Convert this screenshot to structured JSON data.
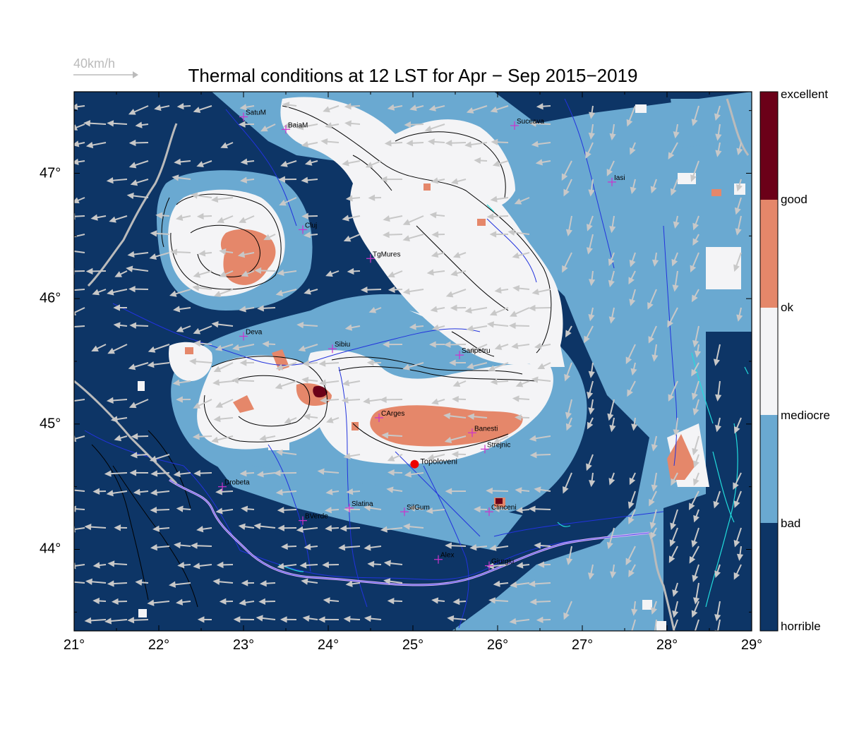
{
  "title": "Thermal conditions at 12 LST for Apr − Sep  2015−2019",
  "wind_scale": {
    "label": "40km/h"
  },
  "colors": {
    "horrible": "#0d3566",
    "bad": "#6aa9d1",
    "mediocre": "#f4f4f6",
    "ok": "#e5876a",
    "good": "#e5876a",
    "excellent": "#6b0018",
    "rivers": "#2233dd",
    "borders": "#bbbbbb",
    "contours": "#000000",
    "cities": "#cc33cc",
    "wind": "#c8c8c8",
    "water": "#22dddd",
    "marker": "#ee0000"
  },
  "legend": {
    "labels": [
      "excellent",
      "good",
      "ok",
      "mediocre",
      "bad",
      "horrible"
    ]
  },
  "axes": {
    "x_ticks": [
      "21°",
      "22°",
      "23°",
      "24°",
      "25°",
      "26°",
      "27°",
      "28°",
      "29°"
    ],
    "y_ticks": [
      "47°",
      "46°",
      "45°",
      "44°"
    ],
    "lon_range": [
      21,
      29
    ],
    "lat_range": [
      43.35,
      47.65
    ]
  },
  "cities": [
    {
      "name": "SatuM",
      "lon": 23.0,
      "lat": 47.45
    },
    {
      "name": "BaiaM",
      "lon": 23.5,
      "lat": 47.35
    },
    {
      "name": "Suceava",
      "lon": 26.2,
      "lat": 47.38
    },
    {
      "name": "Iasi",
      "lon": 27.35,
      "lat": 46.93
    },
    {
      "name": "Cluj",
      "lon": 23.7,
      "lat": 46.55
    },
    {
      "name": "TgMures",
      "lon": 24.5,
      "lat": 46.32
    },
    {
      "name": "Deva",
      "lon": 23.0,
      "lat": 45.7
    },
    {
      "name": "Sibiu",
      "lon": 24.05,
      "lat": 45.6
    },
    {
      "name": "Sanpetru",
      "lon": 25.55,
      "lat": 45.55
    },
    {
      "name": "CArges",
      "lon": 24.6,
      "lat": 45.05
    },
    {
      "name": "Banesti",
      "lon": 25.7,
      "lat": 44.93
    },
    {
      "name": "Strejnic",
      "lon": 25.85,
      "lat": 44.8
    },
    {
      "name": "Drobeta",
      "lon": 22.75,
      "lat": 44.5
    },
    {
      "name": "Slatina",
      "lon": 24.25,
      "lat": 44.33
    },
    {
      "name": "SilGum",
      "lon": 24.9,
      "lat": 44.3
    },
    {
      "name": "Clinceni",
      "lon": 25.9,
      "lat": 44.3
    },
    {
      "name": "BVerde",
      "lon": 23.7,
      "lat": 44.23
    },
    {
      "name": "Alex",
      "lon": 25.3,
      "lat": 43.92
    },
    {
      "name": "Giurgiu",
      "lon": 25.9,
      "lat": 43.87
    }
  ],
  "marker": {
    "name": "Topoloveni",
    "lon": 25.02,
    "lat": 44.68
  }
}
